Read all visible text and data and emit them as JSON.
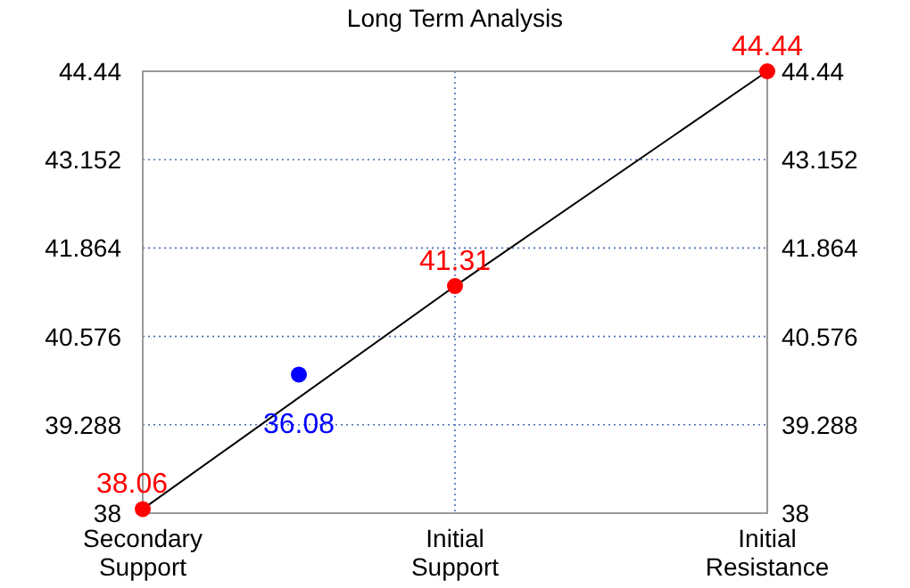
{
  "chart_data": {
    "type": "line",
    "title": "Long Term Analysis",
    "categories": [
      "Secondary Support",
      null,
      "Initial Support",
      null,
      "Initial Resistance"
    ],
    "ylim": [
      38,
      44.44
    ],
    "yticks": [
      38,
      39.288,
      40.576,
      41.864,
      43.152,
      44.44
    ],
    "y2lim": [
      38,
      44.44
    ],
    "y2ticks": [
      38,
      39.288,
      40.576,
      41.864,
      43.152,
      44.44
    ],
    "grid": true,
    "series": [
      {
        "color": "#000000",
        "values": [
          38.06,
          null,
          41.31,
          null,
          44.44
        ],
        "marker": "none"
      },
      {
        "type": "scatter",
        "color": "#ff0000",
        "values": [
          38.06,
          null,
          41.31,
          null,
          44.44
        ],
        "value_labels": [
          "38.06",
          null,
          "41.31",
          null,
          "44.44"
        ],
        "marker": "circle"
      },
      {
        "type": "scatter",
        "color": "#0000ff",
        "values": [
          null,
          40.02,
          null,
          null,
          null
        ],
        "marker": "circle"
      }
    ],
    "annotations": [
      {
        "text": "36.08",
        "y": 40.02
      }
    ]
  }
}
